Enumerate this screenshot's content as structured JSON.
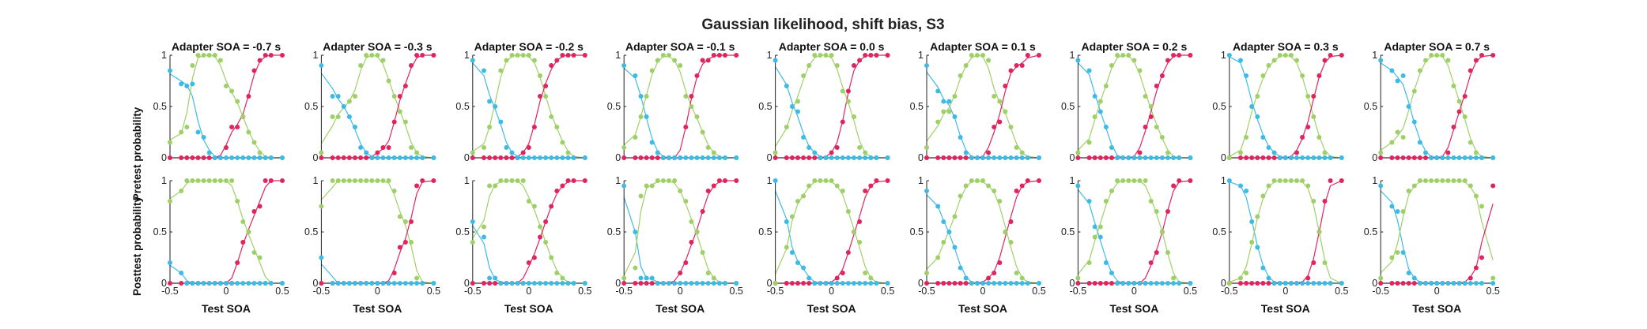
{
  "title": "Gaussian likelihood, shift bias, S3",
  "chart_data": {
    "type": "scatter",
    "title": "Gaussian likelihood, shift bias, S3",
    "xlabel": "Test SOA",
    "row_ylabels": [
      "Pretest probability",
      "Posttest probability"
    ],
    "xlim": [
      -0.5,
      0.5
    ],
    "ylim": [
      0,
      1
    ],
    "xticks": [
      "-0.5",
      "0",
      "0.5"
    ],
    "yticks": [
      "0",
      "0.5",
      "1"
    ],
    "series_colors": {
      "blue": "#3dbbe6",
      "green": "#9fd068",
      "red": "#e0245e"
    },
    "test_soa": [
      -0.5,
      -0.4,
      -0.35,
      -0.3,
      -0.25,
      -0.2,
      -0.15,
      -0.1,
      -0.05,
      0,
      0.05,
      0.1,
      0.15,
      0.2,
      0.25,
      0.3,
      0.35,
      0.4,
      0.5
    ],
    "panel_titles": [
      "Adapter SOA = -0.7 s",
      "Adapter SOA = -0.3 s",
      "Adapter SOA = -0.2 s",
      "Adapter SOA = -0.1 s",
      "Adapter SOA = 0.0 s",
      "Adapter SOA = 0.1 s",
      "Adapter SOA = 0.2 s",
      "Adapter SOA = 0.3 s",
      "Adapter SOA = 0.7 s"
    ],
    "pretest": [
      {
        "blue": [
          0.85,
          0.72,
          0.7,
          0.72,
          0.25,
          0.2,
          0.05,
          0,
          0,
          0,
          0,
          0,
          0,
          0,
          0,
          0,
          0,
          0,
          0
        ],
        "green": [
          0.15,
          0.25,
          0.3,
          0.9,
          1,
          1,
          1,
          1,
          0.95,
          0.7,
          0.65,
          0.55,
          0.4,
          0.25,
          0.15,
          0.05,
          0,
          0,
          0
        ],
        "red": [
          0,
          0,
          0,
          0,
          0,
          0,
          0,
          0,
          0,
          0.1,
          0.3,
          0.3,
          0.4,
          0.6,
          0.85,
          0.95,
          1,
          1,
          1
        ]
      },
      {
        "blue": [
          0.9,
          0.6,
          0.6,
          0.5,
          0.4,
          0.3,
          0.1,
          0.05,
          0,
          0,
          0,
          0,
          0,
          0,
          0,
          0,
          0,
          0,
          0
        ],
        "green": [
          0.05,
          0.4,
          0.4,
          0.5,
          0.55,
          0.6,
          0.9,
          1,
          1,
          1,
          0.95,
          0.75,
          0.6,
          0.45,
          0.35,
          0.1,
          0.05,
          0,
          0
        ],
        "red": [
          0,
          0,
          0,
          0,
          0,
          0,
          0,
          0,
          0,
          0.05,
          0.1,
          0.1,
          0.35,
          0.6,
          0.7,
          0.9,
          1,
          1,
          1
        ]
      },
      {
        "blue": [
          0.95,
          0.85,
          0.55,
          0.5,
          0.35,
          0.1,
          0.05,
          0,
          0,
          0,
          0,
          0,
          0,
          0,
          0,
          0,
          0,
          0,
          0
        ],
        "green": [
          0.05,
          0.1,
          0.3,
          0.5,
          0.85,
          0.95,
          1,
          1,
          1,
          1,
          0.95,
          0.8,
          0.6,
          0.4,
          0.3,
          0.15,
          0.05,
          0,
          0
        ],
        "red": [
          0,
          0,
          0,
          0,
          0,
          0,
          0,
          0,
          0.05,
          0.1,
          0.3,
          0.6,
          0.7,
          0.9,
          0.95,
          1,
          1,
          1,
          1
        ]
      },
      {
        "blue": [
          0.9,
          0.8,
          0.6,
          0.4,
          0.15,
          0.05,
          0,
          0,
          0,
          0,
          0,
          0,
          0,
          0,
          0,
          0,
          0,
          0,
          0
        ],
        "green": [
          0.1,
          0.2,
          0.4,
          0.6,
          0.85,
          0.95,
          1,
          1,
          0.95,
          0.9,
          0.6,
          0.5,
          0.4,
          0.25,
          0.1,
          0.05,
          0,
          0,
          0
        ],
        "red": [
          0,
          0,
          0,
          0,
          0,
          0,
          0,
          0,
          0,
          0,
          0.3,
          0.6,
          0.8,
          0.95,
          0.95,
          1,
          1,
          1,
          1
        ]
      },
      {
        "blue": [
          0.95,
          0.7,
          0.5,
          0.45,
          0.2,
          0.1,
          0.05,
          0,
          0,
          0,
          0,
          0,
          0,
          0,
          0,
          0,
          0,
          0,
          0
        ],
        "green": [
          0.05,
          0.3,
          0.5,
          0.55,
          0.8,
          0.9,
          1,
          1,
          1,
          1,
          0.9,
          0.65,
          0.55,
          0.4,
          0.1,
          0.05,
          0,
          0,
          0
        ],
        "red": [
          0,
          0,
          0,
          0,
          0,
          0,
          0,
          0,
          0,
          0.05,
          0.1,
          0.35,
          0.65,
          0.9,
          0.95,
          1,
          1,
          1,
          1
        ]
      },
      {
        "blue": [
          0.9,
          0.65,
          0.55,
          0.55,
          0.4,
          0.2,
          0.05,
          0,
          0,
          0,
          0,
          0,
          0,
          0,
          0,
          0,
          0,
          0,
          0
        ],
        "green": [
          0.1,
          0.35,
          0.45,
          0.45,
          0.6,
          0.8,
          0.9,
          1,
          1,
          1,
          0.95,
          0.6,
          0.55,
          0.45,
          0.3,
          0.1,
          0.05,
          0,
          0
        ],
        "red": [
          0,
          0,
          0,
          0,
          0,
          0,
          0,
          0,
          0,
          0,
          0.05,
          0.3,
          0.35,
          0.7,
          0.85,
          0.9,
          0.9,
          1,
          1
        ]
      },
      {
        "blue": [
          0.95,
          0.85,
          0.6,
          0.45,
          0.3,
          0.1,
          0,
          0,
          0,
          0,
          0,
          0,
          0,
          0,
          0,
          0,
          0,
          0,
          0
        ],
        "green": [
          0.05,
          0.15,
          0.4,
          0.55,
          0.7,
          0.9,
          1,
          1,
          1,
          0.95,
          0.85,
          0.6,
          0.5,
          0.3,
          0.2,
          0.05,
          0,
          0,
          0
        ],
        "red": [
          0,
          0,
          0,
          0,
          0,
          0,
          0,
          0,
          0,
          0,
          0.05,
          0.3,
          0.4,
          0.7,
          0.8,
          0.95,
          1,
          1,
          1
        ]
      },
      {
        "blue": [
          1,
          0.95,
          0.8,
          0.5,
          0.4,
          0.2,
          0.1,
          0.05,
          0,
          0,
          0,
          0,
          0,
          0,
          0,
          0,
          0,
          0,
          0
        ],
        "green": [
          0,
          0.05,
          0.2,
          0.5,
          0.6,
          0.8,
          0.9,
          0.95,
          1,
          1,
          1,
          0.95,
          0.8,
          0.6,
          0.4,
          0.2,
          0.05,
          0,
          0
        ],
        "red": [
          0,
          0,
          0,
          0,
          0,
          0,
          0,
          0,
          0,
          0,
          0,
          0.05,
          0.2,
          0.3,
          0.6,
          0.8,
          0.95,
          1,
          1
        ]
      },
      {
        "blue": [
          0.95,
          0.85,
          0.75,
          0.8,
          0.5,
          0.35,
          0.15,
          0.05,
          0,
          0,
          0,
          0,
          0,
          0,
          0,
          0,
          0,
          0,
          0
        ],
        "green": [
          0.05,
          0.15,
          0.25,
          0.2,
          0.5,
          0.65,
          0.85,
          0.95,
          1,
          1,
          1,
          0.95,
          0.7,
          0.55,
          0.4,
          0.15,
          0.05,
          0,
          0
        ],
        "red": [
          0,
          0,
          0,
          0,
          0,
          0,
          0,
          0,
          0,
          0,
          0,
          0.05,
          0.3,
          0.45,
          0.6,
          0.85,
          0.95,
          1,
          1
        ]
      }
    ],
    "posttest": [
      {
        "blue": [
          0.2,
          0.1,
          0,
          0,
          0,
          0,
          0,
          0,
          0,
          0,
          0,
          0,
          0,
          0,
          0,
          0,
          0,
          0,
          0
        ],
        "green": [
          0.8,
          0.9,
          1,
          1,
          1,
          1,
          1,
          1,
          1,
          1,
          1,
          0.8,
          0.6,
          0.5,
          0.3,
          0.25,
          0,
          0,
          0
        ],
        "red": [
          0,
          0,
          0,
          0,
          0,
          0,
          0,
          0,
          0,
          0,
          0,
          0.2,
          0.4,
          0.5,
          0.7,
          0.75,
          1,
          1,
          1
        ]
      },
      {
        "blue": [
          0.25,
          0,
          0,
          0,
          0,
          0,
          0,
          0,
          0,
          0,
          0,
          0,
          0,
          0,
          0,
          0,
          0,
          0,
          0
        ],
        "green": [
          0.75,
          1,
          1,
          1,
          1,
          1,
          1,
          1,
          1,
          1,
          1,
          1,
          0.9,
          0.65,
          0.6,
          0.4,
          0.05,
          0,
          0
        ],
        "red": [
          0,
          0,
          0,
          0,
          0,
          0,
          0,
          0,
          0,
          0,
          0,
          0,
          0.1,
          0.35,
          0.4,
          0.6,
          0.95,
          1,
          1
        ]
      },
      {
        "blue": [
          0.6,
          0.45,
          0.05,
          0.05,
          0,
          0,
          0,
          0,
          0,
          0,
          0,
          0,
          0,
          0,
          0,
          0,
          0,
          0,
          0
        ],
        "green": [
          0.4,
          0.55,
          0.95,
          0.95,
          1,
          1,
          1,
          1,
          1,
          0.8,
          0.75,
          0.55,
          0.4,
          0.25,
          0.1,
          0.05,
          0,
          0,
          0
        ],
        "red": [
          0,
          0,
          0,
          0,
          0,
          0,
          0,
          0,
          0,
          0.2,
          0.25,
          0.45,
          0.6,
          0.75,
          0.9,
          0.95,
          1,
          1,
          1
        ]
      },
      {
        "blue": [
          0.95,
          0.5,
          0.05,
          0.05,
          0.05,
          0,
          0,
          0,
          0,
          0,
          0,
          0,
          0,
          0,
          0,
          0,
          0,
          0,
          0
        ],
        "green": [
          0.05,
          0.15,
          0.85,
          0.95,
          0.95,
          1,
          1,
          1,
          1,
          0.9,
          0.8,
          0.6,
          0.5,
          0.3,
          0.1,
          0.05,
          0,
          0,
          0
        ],
        "red": [
          0,
          0,
          0,
          0,
          0,
          0,
          0,
          0,
          0,
          0.1,
          0.2,
          0.4,
          0.5,
          0.7,
          0.9,
          0.95,
          1,
          1,
          1
        ]
      },
      {
        "blue": [
          1,
          0.6,
          0.3,
          0.2,
          0.15,
          0.05,
          0,
          0,
          0,
          0,
          0,
          0,
          0,
          0,
          0,
          0,
          0,
          0,
          0
        ],
        "green": [
          0,
          0.35,
          0.65,
          0.8,
          0.85,
          0.95,
          1,
          1,
          1,
          1,
          0.95,
          0.9,
          0.7,
          0.5,
          0.4,
          0.1,
          0.05,
          0,
          0
        ],
        "red": [
          0,
          0,
          0,
          0,
          0,
          0,
          0,
          0,
          0,
          0,
          0.05,
          0.1,
          0.3,
          0.5,
          0.6,
          0.9,
          0.95,
          1,
          1
        ]
      },
      {
        "blue": [
          0.9,
          0.75,
          0.6,
          0.5,
          0.35,
          0.15,
          0.05,
          0,
          0,
          0,
          0,
          0,
          0,
          0,
          0,
          0,
          0,
          0,
          0
        ],
        "green": [
          0.1,
          0.25,
          0.4,
          0.5,
          0.65,
          0.85,
          0.95,
          1,
          1,
          1,
          0.95,
          0.9,
          0.8,
          0.5,
          0.4,
          0.1,
          0.05,
          0,
          0
        ],
        "red": [
          0,
          0,
          0,
          0,
          0,
          0,
          0,
          0,
          0,
          0,
          0.05,
          0.1,
          0.2,
          0.5,
          0.6,
          0.9,
          0.95,
          1,
          1
        ]
      },
      {
        "blue": [
          0.95,
          0.8,
          0.55,
          0.45,
          0.2,
          0.1,
          0,
          0,
          0,
          0,
          0,
          0,
          0,
          0,
          0,
          0,
          0,
          0,
          0
        ],
        "green": [
          0.05,
          0.2,
          0.45,
          0.55,
          0.8,
          0.9,
          1,
          1,
          1,
          1,
          1,
          1,
          0.8,
          0.7,
          0.5,
          0.3,
          0.05,
          0,
          0
        ],
        "red": [
          0,
          0,
          0,
          0,
          0,
          0,
          0,
          0,
          0,
          0,
          0,
          0,
          0.2,
          0.3,
          0.5,
          0.7,
          0.95,
          1,
          1
        ]
      },
      {
        "blue": [
          1,
          0.95,
          0.9,
          0.6,
          0.35,
          0.15,
          0.05,
          0,
          0,
          0,
          0,
          0,
          0,
          0,
          0,
          0,
          0,
          0,
          0
        ],
        "green": [
          0,
          0.05,
          0.1,
          0.4,
          0.65,
          0.85,
          0.95,
          1,
          1,
          1,
          1,
          1,
          1,
          0.95,
          0.8,
          0.5,
          0.2,
          0,
          0
        ],
        "red": [
          0,
          0,
          0,
          0,
          0,
          0,
          0,
          0,
          0,
          0,
          0,
          0,
          0,
          0.05,
          0.2,
          0.5,
          0.8,
          1,
          1
        ]
      },
      {
        "blue": [
          0.95,
          0.75,
          0.7,
          0.3,
          0.1,
          0.05,
          0,
          0,
          0,
          0,
          0,
          0,
          0,
          0,
          0,
          0,
          0,
          0,
          0
        ],
        "green": [
          0.05,
          0.25,
          0.3,
          0.7,
          0.9,
          0.95,
          1,
          1,
          1,
          1,
          1,
          1,
          1,
          1,
          1,
          0.95,
          0.85,
          0.75,
          0.05
        ],
        "red": [
          0,
          0,
          0,
          0,
          0,
          0,
          0,
          0,
          0,
          0,
          0,
          0,
          0,
          0,
          0,
          0.05,
          0.15,
          0.25,
          0.95
        ]
      }
    ]
  }
}
